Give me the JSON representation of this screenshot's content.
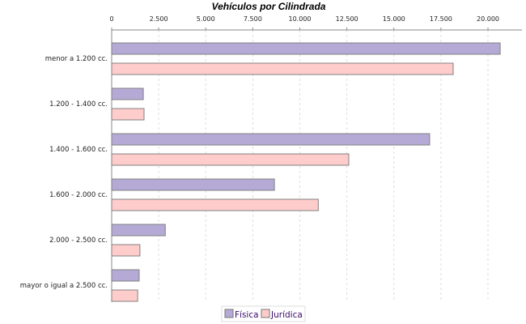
{
  "chart_data": {
    "type": "bar",
    "orientation": "horizontal",
    "title": "Vehículos por Cilindrada",
    "categories": [
      "menor a 1.200 cc.",
      "1.200 - 1.400 cc.",
      "1.400 - 1.600 cc.",
      "1.600 - 2.000 cc.",
      "2.000 - 2.500 cc.",
      "mayor o igual a 2.500 cc."
    ],
    "series": [
      {
        "name": "Física",
        "color": "#b5aad6",
        "values": [
          20650,
          1680,
          16900,
          8650,
          2850,
          1460
        ]
      },
      {
        "name": "Jurídica",
        "color": "#ffcccc",
        "values": [
          18150,
          1720,
          12600,
          10980,
          1500,
          1380
        ]
      }
    ],
    "xlim": [
      0,
      21600
    ],
    "ticks": [
      0,
      2500,
      5000,
      7500,
      10000,
      12500,
      15000,
      17500,
      20000
    ],
    "tick_labels": [
      "0",
      "2.500",
      "5.000",
      "7.500",
      "10.000",
      "12.500",
      "15.000",
      "17.500",
      "20.000"
    ],
    "xlabel": "",
    "ylabel": "",
    "grid": true,
    "legend_position": "bottom"
  }
}
